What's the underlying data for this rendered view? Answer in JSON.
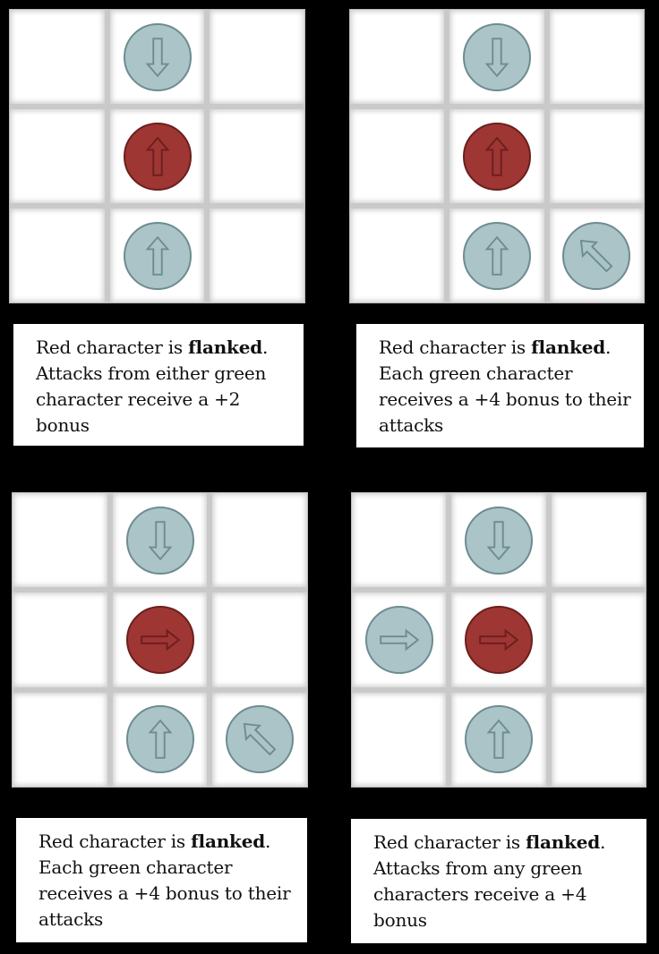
{
  "colors": {
    "ally": "#aac4c7",
    "ally_arrow": "#6e8c90",
    "enemy": "#9e3634",
    "enemy_arrow": "#6b1f1d"
  },
  "panels": [
    {
      "caption": {
        "pre": "Red character is ",
        "bold": "flanked",
        "post": ".\nAttacks from either green character receive a +2 bonus"
      },
      "tokens": [
        {
          "color": "green",
          "col": 1,
          "row": 0,
          "facing": "down-arrow-icon"
        },
        {
          "color": "red",
          "col": 1,
          "row": 1,
          "facing": "up-arrow-icon"
        },
        {
          "color": "green",
          "col": 1,
          "row": 2,
          "facing": "up-arrow-icon"
        }
      ]
    },
    {
      "caption": {
        "pre": "Red character is ",
        "bold": "flanked",
        "post": ".\nEach green character receives a +4 bonus to their attacks"
      },
      "tokens": [
        {
          "color": "green",
          "col": 1,
          "row": 0,
          "facing": "down-arrow-icon"
        },
        {
          "color": "red",
          "col": 1,
          "row": 1,
          "facing": "up-arrow-icon"
        },
        {
          "color": "green",
          "col": 1,
          "row": 2,
          "facing": "up-arrow-icon"
        },
        {
          "color": "green",
          "col": 2,
          "row": 2,
          "facing": "up-left-arrow-icon"
        }
      ]
    },
    {
      "caption": {
        "pre": "Red character is ",
        "bold": "flanked",
        "post": ".\nEach green character receives a +4 bonus to their attacks"
      },
      "tokens": [
        {
          "color": "green",
          "col": 1,
          "row": 0,
          "facing": "down-arrow-icon"
        },
        {
          "color": "red",
          "col": 1,
          "row": 1,
          "facing": "right-arrow-icon"
        },
        {
          "color": "green",
          "col": 1,
          "row": 2,
          "facing": "up-arrow-icon"
        },
        {
          "color": "green",
          "col": 2,
          "row": 2,
          "facing": "up-left-arrow-icon"
        }
      ]
    },
    {
      "caption": {
        "pre": "Red character is ",
        "bold": "flanked",
        "post": ".\nAttacks from any green characters receive a +4 bonus"
      },
      "tokens": [
        {
          "color": "green",
          "col": 1,
          "row": 0,
          "facing": "down-arrow-icon"
        },
        {
          "color": "green",
          "col": 0,
          "row": 1,
          "facing": "right-arrow-icon"
        },
        {
          "color": "red",
          "col": 1,
          "row": 1,
          "facing": "right-arrow-icon"
        },
        {
          "color": "green",
          "col": 1,
          "row": 2,
          "facing": "up-arrow-icon"
        }
      ]
    }
  ]
}
